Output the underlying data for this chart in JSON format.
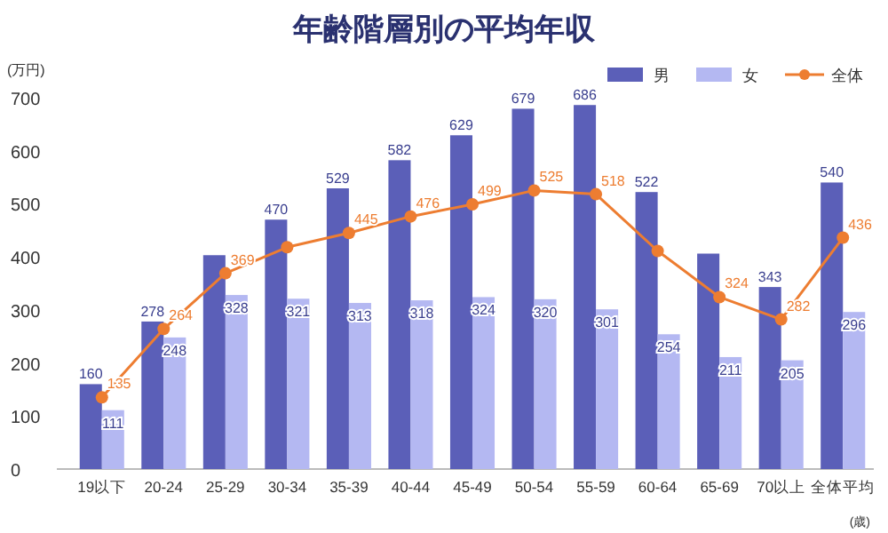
{
  "chart_data": {
    "type": "bar",
    "title": "年齢階層別の平均年収",
    "ylabel": "(万円)",
    "xlabel": "(歳)",
    "categories": [
      "19以下",
      "20-24",
      "25-29",
      "30-34",
      "35-39",
      "40-44",
      "45-49",
      "50-54",
      "55-59",
      "60-64",
      "65-69",
      "70以上",
      "全体平均"
    ],
    "series": [
      {
        "name": "男",
        "color": "#5b5fb8",
        "values": [
          160,
          278,
          403,
          470,
          529,
          582,
          629,
          679,
          686,
          522,
          406,
          343,
          540
        ],
        "value_labels": [
          "160",
          "278",
          null,
          "470",
          "529",
          "582",
          "629",
          "679",
          "686",
          "522",
          null,
          "343",
          "540"
        ]
      },
      {
        "name": "女",
        "color": "#b4b8f2",
        "values": [
          111,
          248,
          328,
          321,
          313,
          318,
          324,
          320,
          301,
          254,
          211,
          205,
          296
        ],
        "value_labels": [
          "111",
          "248",
          "328",
          "321",
          "313",
          "318",
          "324",
          "320",
          "301",
          "254",
          "211",
          "205",
          "296"
        ]
      },
      {
        "name": "全体",
        "type": "line",
        "color": "#ed7d31",
        "values": [
          135,
          264,
          369,
          418,
          445,
          476,
          499,
          525,
          518,
          411,
          324,
          282,
          436
        ],
        "value_labels": [
          "135",
          "264",
          "369",
          null,
          "445",
          "476",
          "499",
          "525",
          "518",
          null,
          "324",
          "282",
          "436"
        ]
      }
    ],
    "ylim": [
      0,
      750
    ],
    "yticks": [
      0,
      100,
      200,
      300,
      400,
      500,
      600,
      700
    ],
    "legend": "top right",
    "marker": "circle"
  }
}
